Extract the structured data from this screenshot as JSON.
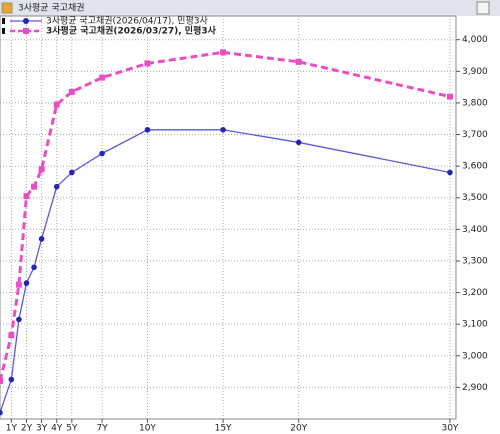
{
  "window_title": "3사평균 국고채권",
  "chart_data": {
    "type": "line",
    "x": [
      0.25,
      1,
      1.5,
      2,
      2.5,
      3,
      4,
      5,
      7,
      10,
      15,
      20,
      30
    ],
    "xlim": [
      0.25,
      30.4
    ],
    "xticks": [
      {
        "value": 1,
        "label": "1Y"
      },
      {
        "value": 2,
        "label": "2Y"
      },
      {
        "value": 3,
        "label": "3Y"
      },
      {
        "value": 4,
        "label": "4Y"
      },
      {
        "value": 5,
        "label": "5Y"
      },
      {
        "value": 7,
        "label": "7Y"
      },
      {
        "value": 10,
        "label": "10Y"
      },
      {
        "value": 15,
        "label": "15Y"
      },
      {
        "value": 20,
        "label": "20Y"
      },
      {
        "value": 30,
        "label": "30Y"
      }
    ],
    "ylim": [
      2800,
      4075
    ],
    "yticks": [
      {
        "value": 2900,
        "label": "2,900"
      },
      {
        "value": 3000,
        "label": "3,000"
      },
      {
        "value": 3100,
        "label": "3,100"
      },
      {
        "value": 3200,
        "label": "3,200"
      },
      {
        "value": 3300,
        "label": "3,300"
      },
      {
        "value": 3400,
        "label": "3,400"
      },
      {
        "value": 3500,
        "label": "3,500"
      },
      {
        "value": 3600,
        "label": "3,600"
      },
      {
        "value": 3700,
        "label": "3,700"
      },
      {
        "value": 3800,
        "label": "3,800"
      },
      {
        "value": 3900,
        "label": "3,900"
      },
      {
        "value": 4000,
        "label": "4,000"
      }
    ],
    "grid": true,
    "series": [
      {
        "name": "3사평균 국고채권(2026/04/17), 민평3사",
        "color": "#5a5ad6",
        "values": [
          2820,
          2925,
          3115,
          3230,
          3280,
          3370,
          3535,
          3580,
          3640,
          3715,
          3715,
          3675,
          3580
        ]
      },
      {
        "name": "3사평균 국고채권(2026/03/27), 민평3사",
        "color": "#e84fc4",
        "values": [
          2920,
          3065,
          3225,
          3505,
          3535,
          3590,
          3795,
          3835,
          3880,
          3925,
          3960,
          3930,
          3820
        ]
      }
    ]
  }
}
